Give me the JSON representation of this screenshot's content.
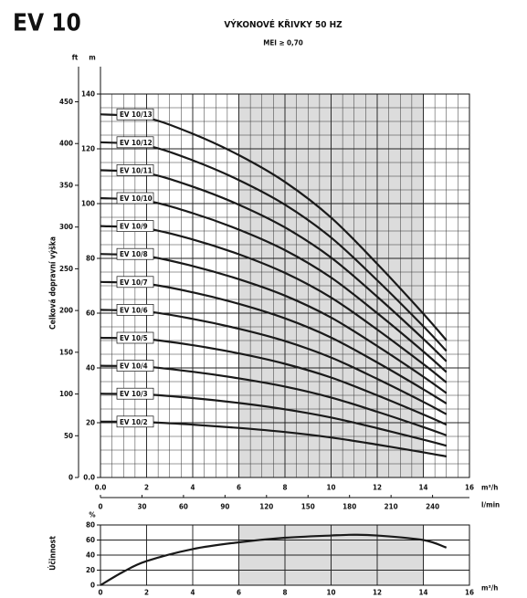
{
  "chart_data": [
    {
      "type": "line",
      "title": "EV 10",
      "subtitle": "VÝKONOVÉ KŘIVKY 50 HZ",
      "note": "MEI ≥ 0,70",
      "y_label": "Celková dopravní výška",
      "x_label": "m³/h",
      "x2_label": "l/min",
      "y_unit": "m",
      "y2_unit": "ft",
      "x": [
        0,
        2,
        4,
        6,
        8,
        10,
        12,
        14,
        15
      ],
      "series": [
        {
          "name": "EV 10/13",
          "color": "#1a1a1a",
          "values": [
            132.6,
            131.3,
            125.5,
            117.7,
            107.9,
            94.9,
            78,
            59.8,
            50.1
          ]
        },
        {
          "name": "EV 10/12",
          "color": "#1a1a1a",
          "values": [
            122.4,
            121.2,
            115.8,
            108.6,
            99.6,
            87.6,
            72,
            55.2,
            46.2
          ]
        },
        {
          "name": "EV 10/11",
          "color": "#1a1a1a",
          "values": [
            112.2,
            111.1,
            106.2,
            99.6,
            91.3,
            80.3,
            66,
            50.6,
            42.4
          ]
        },
        {
          "name": "EV 10/10",
          "color": "#1a1a1a",
          "values": [
            102,
            101,
            96.5,
            90.5,
            83,
            73,
            60,
            46,
            38.5
          ]
        },
        {
          "name": "EV 10/9",
          "color": "#1a1a1a",
          "values": [
            91.8,
            90.9,
            86.9,
            81.5,
            74.7,
            65.7,
            54,
            41.4,
            34.7
          ]
        },
        {
          "name": "EV 10/8",
          "color": "#1a1a1a",
          "values": [
            81.6,
            80.8,
            77.2,
            72.4,
            66.4,
            58.4,
            48,
            36.8,
            30.8
          ]
        },
        {
          "name": "EV 10/7",
          "color": "#1a1a1a",
          "values": [
            71.4,
            70.7,
            67.6,
            63.4,
            58.1,
            51.1,
            42,
            32.2,
            27
          ]
        },
        {
          "name": "EV 10/6",
          "color": "#1a1a1a",
          "values": [
            61.2,
            60.6,
            57.9,
            54.3,
            49.8,
            43.8,
            36,
            27.6,
            23.1
          ]
        },
        {
          "name": "EV 10/5",
          "color": "#1a1a1a",
          "values": [
            51,
            50.5,
            48.3,
            45.3,
            41.5,
            36.5,
            30,
            23,
            19.3
          ]
        },
        {
          "name": "EV 10/4",
          "color": "#1a1a1a",
          "values": [
            40.8,
            40.4,
            38.6,
            36.2,
            33.2,
            29.2,
            24,
            18.4,
            15.4
          ]
        },
        {
          "name": "EV 10/3",
          "color": "#1a1a1a",
          "values": [
            30.6,
            30.3,
            29,
            27.2,
            24.9,
            21.9,
            18,
            13.8,
            11.6
          ]
        },
        {
          "name": "EV 10/2",
          "color": "#1a1a1a",
          "values": [
            20.4,
            20.2,
            19.3,
            18.1,
            16.6,
            14.6,
            12,
            9.2,
            7.7
          ]
        }
      ],
      "xlim": [
        0,
        16
      ],
      "xticks": [
        {
          "value": 0,
          "label": "0.0"
        },
        2,
        4,
        6,
        8,
        10,
        12,
        14,
        16
      ],
      "ylim": [
        0,
        140
      ],
      "yticks": [
        {
          "value": 0,
          "label": "0.0"
        },
        20,
        40,
        60,
        80,
        100,
        120,
        140
      ],
      "y2lim": [
        0,
        459.3
      ],
      "y2ticks": [
        0,
        50,
        100,
        150,
        200,
        250,
        300,
        350,
        400,
        450
      ],
      "x2lim": [
        0,
        266.67
      ],
      "x2ticks": [
        0,
        30,
        60,
        90,
        120,
        150,
        180,
        210,
        240
      ],
      "shaded_range": [
        6,
        14
      ],
      "grid": true
    },
    {
      "type": "line",
      "y_label": "Účinnost",
      "y_unit": "%",
      "x_label": "m³/h",
      "x": [
        0,
        1,
        2,
        4,
        6,
        8,
        10,
        11,
        12,
        14,
        15
      ],
      "values": [
        0,
        18,
        32,
        48,
        57,
        63,
        66,
        67,
        66,
        60,
        50
      ],
      "color": "#1a1a1a",
      "xlim": [
        0,
        16
      ],
      "xticks": [
        0,
        2,
        4,
        6,
        8,
        10,
        12,
        14,
        16
      ],
      "ylim": [
        0,
        80
      ],
      "yticks": [
        0,
        20,
        40,
        60,
        80
      ],
      "shaded_range": [
        6,
        14
      ],
      "grid": true
    }
  ]
}
